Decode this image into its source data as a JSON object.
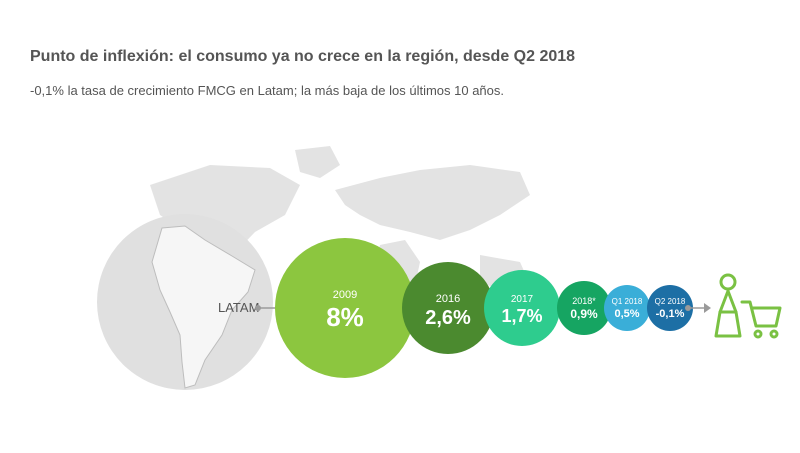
{
  "header": {
    "title": "Punto de inflexión: el consumo ya no crece en la región, desde Q2 2018",
    "subtitle": "-0,1% la tasa de crecimiento FMCG en Latam; la más baja de los últimos 10 años."
  },
  "region_label": "LATAM",
  "icons": [
    "world-map-icon",
    "globe-icon",
    "shopper-icon",
    "shopping-cart-icon"
  ],
  "colors": {
    "text": "#555555",
    "map": "#e3e3e3",
    "globe": "#e0e0e0",
    "icon": "#7ac143",
    "arrow": "#9a9a9a"
  },
  "chart_data": {
    "type": "bubble",
    "categories": [
      "2009",
      "2016",
      "2017",
      "2018*",
      "Q1 2018",
      "Q2 2018"
    ],
    "values": [
      8,
      2.6,
      1.7,
      0.9,
      0.5,
      -0.1
    ],
    "value_labels": [
      "8%",
      "2,6%",
      "1,7%",
      "0,9%",
      "0,5%",
      "-0,1%"
    ],
    "colors": [
      "#8cc63f",
      "#4b8a2f",
      "#2ecc8e",
      "#16a562",
      "#3aaed8",
      "#1d6fa5"
    ]
  }
}
